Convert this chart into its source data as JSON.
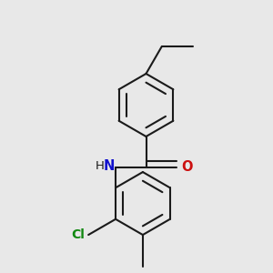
{
  "background_color": "#e8e8e8",
  "bond_color": "#1a1a1a",
  "bond_width": 1.5,
  "atom_labels": {
    "N": {
      "color": "#1010cc",
      "fontsize": 10.5,
      "fontweight": "bold"
    },
    "O": {
      "color": "#cc1010",
      "fontsize": 10.5,
      "fontweight": "bold"
    },
    "Cl": {
      "color": "#118811",
      "fontsize": 10.0,
      "fontweight": "bold"
    },
    "H": {
      "color": "#1a1a1a",
      "fontsize": 9.5,
      "fontweight": "normal"
    }
  },
  "figsize": [
    3.0,
    3.0
  ],
  "dpi": 100,
  "xlim": [
    0.0,
    1.0
  ],
  "ylim": [
    0.0,
    1.0
  ]
}
